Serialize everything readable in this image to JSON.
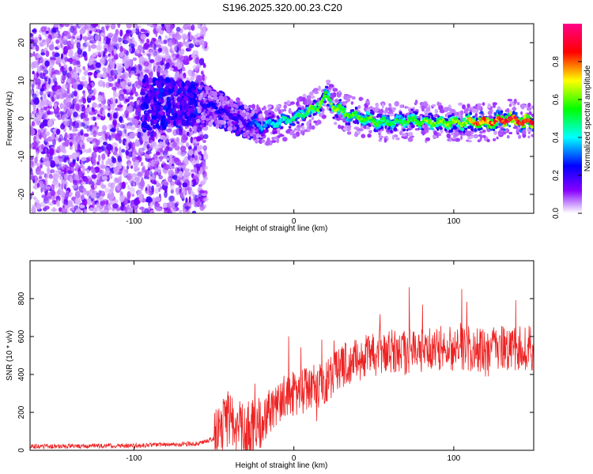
{
  "title": "S196.2025.320.00.23.C20",
  "chart_data": [
    {
      "type": "heatmap",
      "xlabel": "Height of straight line (km)",
      "ylabel": "Frequency (Hz)",
      "xlim": [
        -165,
        150
      ],
      "ylim": [
        -25,
        25
      ],
      "xticks": [
        -100,
        0,
        100
      ],
      "yticks": [
        -20,
        -10,
        0,
        10,
        20
      ],
      "colorbar": {
        "label": "Normalized spectral amplitude",
        "range": [
          0,
          1
        ],
        "ticks": [
          0.0,
          0.2,
          0.4,
          0.6,
          0.8
        ],
        "colormap": [
          "#ffffff",
          "#8800ff",
          "#0000ff",
          "#00ffff",
          "#00ff00",
          "#ffff00",
          "#ff0000",
          "#ff00aa"
        ]
      },
      "ridge": {
        "description_x": [
          -60,
          -50,
          -40,
          -30,
          -20,
          -10,
          0,
          10,
          15,
          20,
          25,
          35,
          45,
          55,
          65,
          75,
          85,
          95,
          105,
          115,
          125,
          135,
          145,
          150
        ],
        "frequency": [
          4,
          3,
          1,
          -1,
          -2,
          -1,
          0,
          2,
          3,
          6,
          3,
          1,
          0,
          -1,
          -1,
          -0.5,
          -1,
          -1,
          -1,
          -1,
          -1,
          0,
          -1,
          -1
        ],
        "amplitude": [
          0.2,
          0.25,
          0.2,
          0.2,
          0.35,
          0.4,
          0.45,
          0.55,
          0.6,
          0.5,
          0.6,
          0.55,
          0.55,
          0.55,
          0.5,
          0.55,
          0.6,
          0.6,
          0.6,
          0.75,
          0.8,
          0.85,
          0.85,
          0.85
        ]
      }
    },
    {
      "type": "line",
      "xlabel": "Height of straight line (km)",
      "ylabel": "SNR (10 * v/v)",
      "xlim": [
        -165,
        150
      ],
      "ylim": [
        0,
        1000
      ],
      "xticks": [
        -100,
        0,
        100
      ],
      "yticks": [
        0,
        200,
        400,
        600,
        800
      ],
      "color": "#ee2222",
      "trend_x": [
        -165,
        -100,
        -60,
        -50,
        -45,
        -40,
        -35,
        -30,
        -20,
        -10,
        0,
        10,
        20,
        30,
        40,
        60,
        80,
        100,
        120,
        150
      ],
      "trend_y": [
        20,
        25,
        35,
        60,
        110,
        180,
        110,
        90,
        150,
        260,
        300,
        320,
        360,
        450,
        480,
        520,
        530,
        540,
        530,
        540
      ]
    }
  ]
}
